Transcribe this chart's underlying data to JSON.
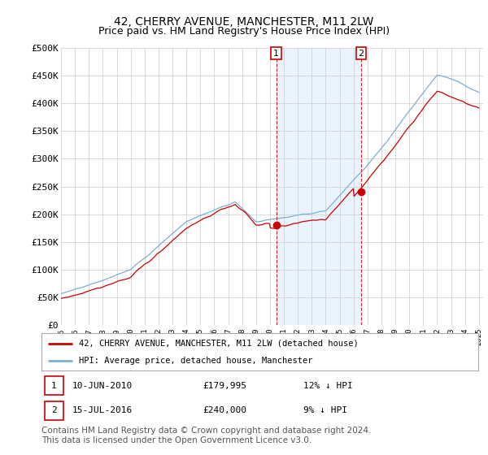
{
  "title": "42, CHERRY AVENUE, MANCHESTER, M11 2LW",
  "subtitle": "Price paid vs. HM Land Registry's House Price Index (HPI)",
  "yticks": [
    0,
    50000,
    100000,
    150000,
    200000,
    250000,
    300000,
    350000,
    400000,
    450000,
    500000
  ],
  "ytick_labels": [
    "£0",
    "£50K",
    "£100K",
    "£150K",
    "£200K",
    "£250K",
    "£300K",
    "£350K",
    "£400K",
    "£450K",
    "£500K"
  ],
  "legend_entry1": "42, CHERRY AVENUE, MANCHESTER, M11 2LW (detached house)",
  "legend_entry2": "HPI: Average price, detached house, Manchester",
  "sale1_date": "10-JUN-2010",
  "sale1_price": "£179,995",
  "sale1_hpi": "12% ↓ HPI",
  "sale2_date": "15-JUL-2016",
  "sale2_price": "£240,000",
  "sale2_hpi": "9% ↓ HPI",
  "sale1_year": 2010.458,
  "sale1_price_val": 179995,
  "sale2_year": 2016.542,
  "sale2_price_val": 240000,
  "line_color_red": "#cc0000",
  "line_color_blue": "#7ab0d4",
  "shade_color": "#ddeeff",
  "annotation_box_color": "#cc0000",
  "dashed_line_color": "#cc0000",
  "bg_color": "#ffffff",
  "grid_color": "#cccccc",
  "footnote": "Contains HM Land Registry data © Crown copyright and database right 2024.\nThis data is licensed under the Open Government Licence v3.0.",
  "title_fontsize": 10,
  "subtitle_fontsize": 9,
  "footnote_fontsize": 7.5,
  "xstart": 1995,
  "xend": 2025
}
